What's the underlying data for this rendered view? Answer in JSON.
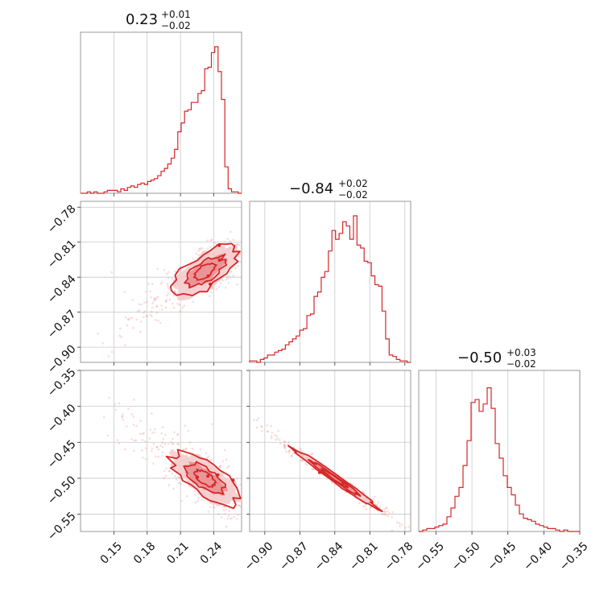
{
  "chart_data": {
    "type": "corner",
    "color": "#d62728",
    "parameters": [
      {
        "title": {
          "median": "0.23",
          "plus": "+0.01",
          "minus": "−0.02"
        },
        "ticks": [
          0.15,
          0.18,
          0.21,
          0.24
        ],
        "tick_labels": [
          "0.15",
          "0.18",
          "0.21",
          "0.24"
        ],
        "range": [
          0.12,
          0.265
        ]
      },
      {
        "title": {
          "median": "−0.84",
          "plus": "+0.02",
          "minus": "−0.02"
        },
        "ticks": [
          -0.9,
          -0.87,
          -0.84,
          -0.81,
          -0.78
        ],
        "tick_labels": [
          "−0.90",
          "−0.87",
          "−0.84",
          "−0.81",
          "−0.78"
        ],
        "range": [
          -0.913,
          -0.775
        ]
      },
      {
        "title": {
          "median": "−0.50",
          "plus": "+0.03",
          "minus": "−0.02"
        },
        "ticks": [
          -0.55,
          -0.5,
          -0.45,
          -0.4,
          -0.35
        ],
        "tick_labels": [
          "−0.55",
          "−0.50",
          "−0.45",
          "−0.40",
          "−0.35"
        ],
        "range": [
          -0.574,
          -0.35
        ]
      }
    ],
    "histograms": [
      {
        "param": 0,
        "density": [
          0,
          0,
          0.01,
          0,
          0.01,
          0,
          0,
          0.01,
          0.02,
          0.02,
          0.02,
          0.01,
          0.03,
          0.02,
          0.04,
          0.05,
          0.04,
          0.06,
          0.07,
          0.06,
          0.08,
          0.09,
          0.1,
          0.12,
          0.15,
          0.17,
          0.2,
          0.24,
          0.3,
          0.42,
          0.48,
          0.56,
          0.57,
          0.62,
          0.62,
          0.68,
          0.7,
          0.85,
          0.86,
          0.96,
          1.0,
          0.83,
          0.64,
          0.18,
          0.03,
          0.01,
          0.01,
          0.0
        ]
      },
      {
        "param": 1,
        "density": [
          0.01,
          0.01,
          0,
          0.02,
          0.03,
          0.05,
          0.05,
          0.07,
          0.08,
          0.09,
          0.12,
          0.14,
          0.16,
          0.18,
          0.22,
          0.23,
          0.32,
          0.33,
          0.45,
          0.48,
          0.58,
          0.62,
          0.76,
          0.9,
          0.84,
          0.88,
          0.96,
          0.93,
          0.84,
          1.0,
          0.8,
          0.78,
          0.69,
          0.68,
          0.59,
          0.53,
          0.52,
          0.35,
          0.16,
          0.05,
          0.04,
          0.02,
          0.01,
          0.01,
          0.0
        ]
      },
      {
        "param": 2,
        "density": [
          0,
          0.01,
          0.02,
          0.02,
          0.03,
          0.04,
          0.05,
          0.1,
          0.16,
          0.24,
          0.3,
          0.45,
          0.62,
          0.88,
          0.9,
          0.82,
          0.87,
          0.98,
          0.84,
          0.6,
          0.5,
          0.38,
          0.3,
          0.25,
          0.18,
          0.12,
          0.09,
          0.08,
          0.07,
          0.05,
          0.04,
          0.03,
          0.02,
          0.02,
          0.01,
          0.0,
          0.01,
          0.0,
          0.0,
          0.0
        ]
      }
    ],
    "pairs": [
      {
        "x_param": 0,
        "y_param": 1,
        "center": [
          0.232,
          -0.835
        ],
        "corr": 0.72
      },
      {
        "x_param": 0,
        "y_param": 2,
        "center": [
          0.232,
          -0.5
        ],
        "corr": -0.72
      },
      {
        "x_param": 1,
        "y_param": 2,
        "center": [
          -0.84,
          -0.5
        ],
        "corr": -0.985
      }
    ]
  }
}
